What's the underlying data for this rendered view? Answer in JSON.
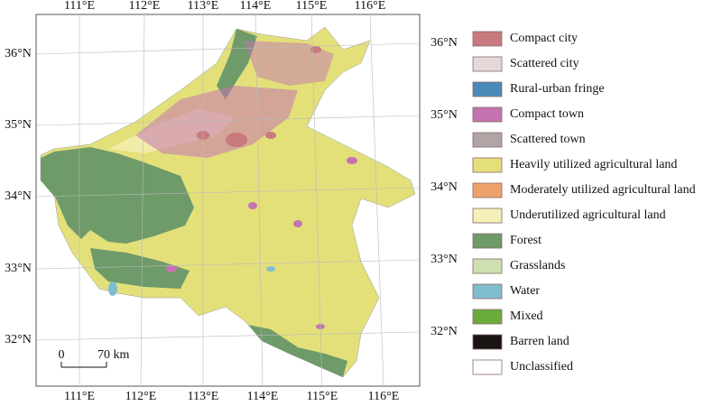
{
  "map": {
    "top_labels": [
      "111°E",
      "112°E",
      "113°E",
      "114°E",
      "115°E",
      "116°E"
    ],
    "bottom_labels": [
      "111°E",
      "112°E",
      "113°E",
      "114°E",
      "115°E",
      "116°E"
    ],
    "left_labels": [
      "36°N",
      "35°N",
      "34°N",
      "33°N",
      "32°N"
    ],
    "right_labels": [
      "36°N",
      "35°N",
      "34°N",
      "33°N",
      "32°N"
    ],
    "scale_bar": {
      "start": "0",
      "end": "70 km"
    }
  },
  "legend": {
    "items": [
      {
        "label": "Compact city",
        "color": "#c87a7e"
      },
      {
        "label": "Scattered city",
        "color": "#e6d8d8"
      },
      {
        "label": "Rural-urban fringe",
        "color": "#4b8ab8"
      },
      {
        "label": "Compact town",
        "color": "#c474b0"
      },
      {
        "label": "Scattered town",
        "color": "#b0a4a4"
      },
      {
        "label": "Heavily utilized agricultural land",
        "color": "#e3e07a"
      },
      {
        "label": "Moderately utilized agricultural land",
        "color": "#eea26a"
      },
      {
        "label": "Underutilized agricultural land",
        "color": "#f5efb8"
      },
      {
        "label": "Forest",
        "color": "#6f9a6a"
      },
      {
        "label": "Grasslands",
        "color": "#cfe0b0"
      },
      {
        "label": "Water",
        "color": "#80bcd0"
      },
      {
        "label": "Mixed",
        "color": "#6aab3c"
      },
      {
        "label": "Barren land",
        "color": "#1a1412"
      },
      {
        "label": "Unclassified",
        "color": "#ffffff"
      }
    ]
  }
}
